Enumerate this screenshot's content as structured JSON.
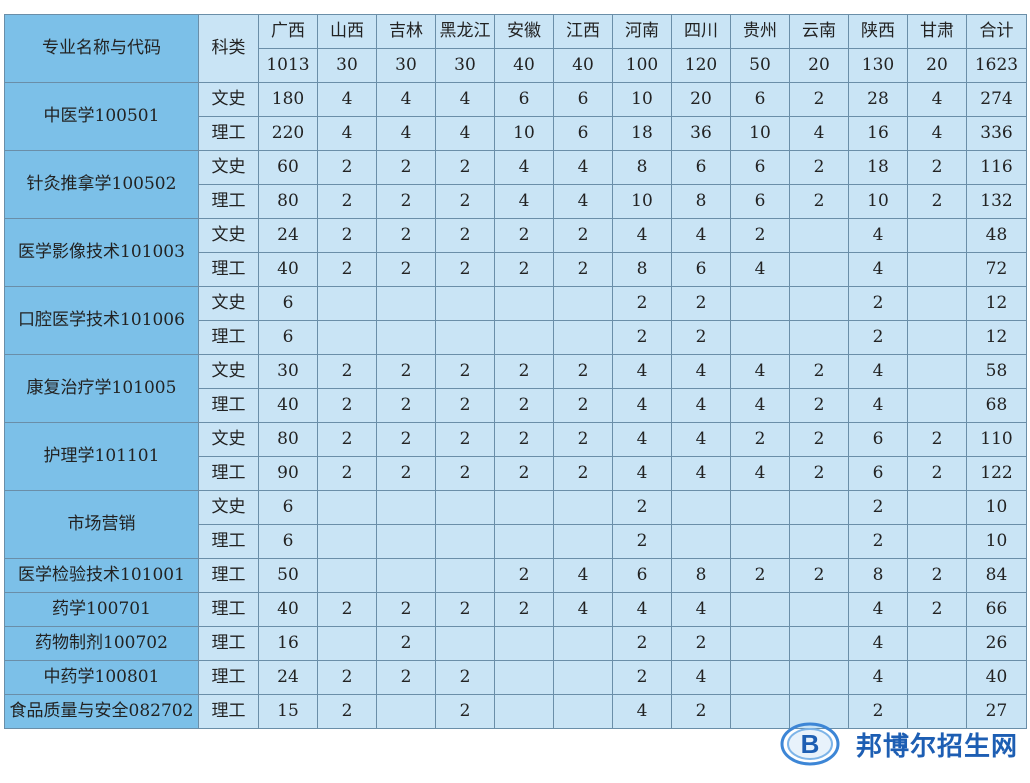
{
  "header": {
    "major_label": "专业名称与代码",
    "type_label": "科类",
    "provinces": [
      "广西",
      "山西",
      "吉林",
      "黑龙江",
      "安徽",
      "江西",
      "河南",
      "四川",
      "贵州",
      "云南",
      "陕西",
      "甘肃",
      "合计"
    ],
    "totals": [
      "1013",
      "30",
      "30",
      "30",
      "40",
      "40",
      "100",
      "120",
      "50",
      "20",
      "130",
      "20",
      "1623"
    ]
  },
  "majors": [
    {
      "name": "中医学100501",
      "rows": [
        {
          "type": "文史",
          "values": [
            "180",
            "4",
            "4",
            "4",
            "6",
            "6",
            "10",
            "20",
            "6",
            "2",
            "28",
            "4",
            "274"
          ]
        },
        {
          "type": "理工",
          "values": [
            "220",
            "4",
            "4",
            "4",
            "10",
            "6",
            "18",
            "36",
            "10",
            "4",
            "16",
            "4",
            "336"
          ]
        }
      ]
    },
    {
      "name": "针灸推拿学100502",
      "rows": [
        {
          "type": "文史",
          "values": [
            "60",
            "2",
            "2",
            "2",
            "4",
            "4",
            "8",
            "6",
            "6",
            "2",
            "18",
            "2",
            "116"
          ]
        },
        {
          "type": "理工",
          "values": [
            "80",
            "2",
            "2",
            "2",
            "4",
            "4",
            "10",
            "8",
            "6",
            "2",
            "10",
            "2",
            "132"
          ]
        }
      ]
    },
    {
      "name": "医学影像技术101003",
      "rows": [
        {
          "type": "文史",
          "values": [
            "24",
            "2",
            "2",
            "2",
            "2",
            "2",
            "4",
            "4",
            "2",
            "",
            "4",
            "",
            "48"
          ]
        },
        {
          "type": "理工",
          "values": [
            "40",
            "2",
            "2",
            "2",
            "2",
            "2",
            "8",
            "6",
            "4",
            "",
            "4",
            "",
            "72"
          ]
        }
      ]
    },
    {
      "name": "口腔医学技术101006",
      "rows": [
        {
          "type": "文史",
          "values": [
            "6",
            "",
            "",
            "",
            "",
            "",
            "2",
            "2",
            "",
            "",
            "2",
            "",
            "12"
          ]
        },
        {
          "type": "理工",
          "values": [
            "6",
            "",
            "",
            "",
            "",
            "",
            "2",
            "2",
            "",
            "",
            "2",
            "",
            "12"
          ]
        }
      ]
    },
    {
      "name": "康复治疗学101005",
      "rows": [
        {
          "type": "文史",
          "values": [
            "30",
            "2",
            "2",
            "2",
            "2",
            "2",
            "4",
            "4",
            "4",
            "2",
            "4",
            "",
            "58"
          ]
        },
        {
          "type": "理工",
          "values": [
            "40",
            "2",
            "2",
            "2",
            "2",
            "2",
            "4",
            "4",
            "4",
            "2",
            "4",
            "",
            "68"
          ]
        }
      ]
    },
    {
      "name": "护理学101101",
      "rows": [
        {
          "type": "文史",
          "values": [
            "80",
            "2",
            "2",
            "2",
            "2",
            "2",
            "4",
            "4",
            "2",
            "2",
            "6",
            "2",
            "110"
          ]
        },
        {
          "type": "理工",
          "values": [
            "90",
            "2",
            "2",
            "2",
            "2",
            "2",
            "4",
            "4",
            "4",
            "2",
            "6",
            "2",
            "122"
          ]
        }
      ]
    },
    {
      "name": "市场营销",
      "rows": [
        {
          "type": "文史",
          "values": [
            "6",
            "",
            "",
            "",
            "",
            "",
            "2",
            "",
            "",
            "",
            "2",
            "",
            "10"
          ]
        },
        {
          "type": "理工",
          "values": [
            "6",
            "",
            "",
            "",
            "",
            "",
            "2",
            "",
            "",
            "",
            "2",
            "",
            "10"
          ]
        }
      ]
    },
    {
      "name": "医学检验技术101001",
      "rows": [
        {
          "type": "理工",
          "values": [
            "50",
            "",
            "",
            "",
            "2",
            "4",
            "6",
            "8",
            "2",
            "2",
            "8",
            "2",
            "84"
          ]
        }
      ]
    },
    {
      "name": "药学100701",
      "rows": [
        {
          "type": "理工",
          "values": [
            "40",
            "2",
            "2",
            "2",
            "2",
            "4",
            "4",
            "4",
            "",
            "",
            "4",
            "2",
            "66"
          ]
        }
      ]
    },
    {
      "name": "药物制剂100702",
      "rows": [
        {
          "type": "理工",
          "values": [
            "16",
            "",
            "2",
            "",
            "",
            "",
            "2",
            "2",
            "",
            "",
            "4",
            "",
            "26"
          ]
        }
      ]
    },
    {
      "name": "中药学100801",
      "rows": [
        {
          "type": "理工",
          "values": [
            "24",
            "2",
            "2",
            "2",
            "",
            "",
            "2",
            "4",
            "",
            "",
            "4",
            "",
            "40"
          ]
        }
      ]
    },
    {
      "name": "食品质量与安全082702",
      "rows": [
        {
          "type": "理工",
          "values": [
            "15",
            "2",
            "",
            "2",
            "",
            "",
            "4",
            "2",
            "",
            "",
            "2",
            "",
            "27"
          ]
        }
      ]
    }
  ],
  "watermark": {
    "text": "邦博尔招生网",
    "logo_icon": "b-logo-icon",
    "color": "#1d5eb3"
  }
}
